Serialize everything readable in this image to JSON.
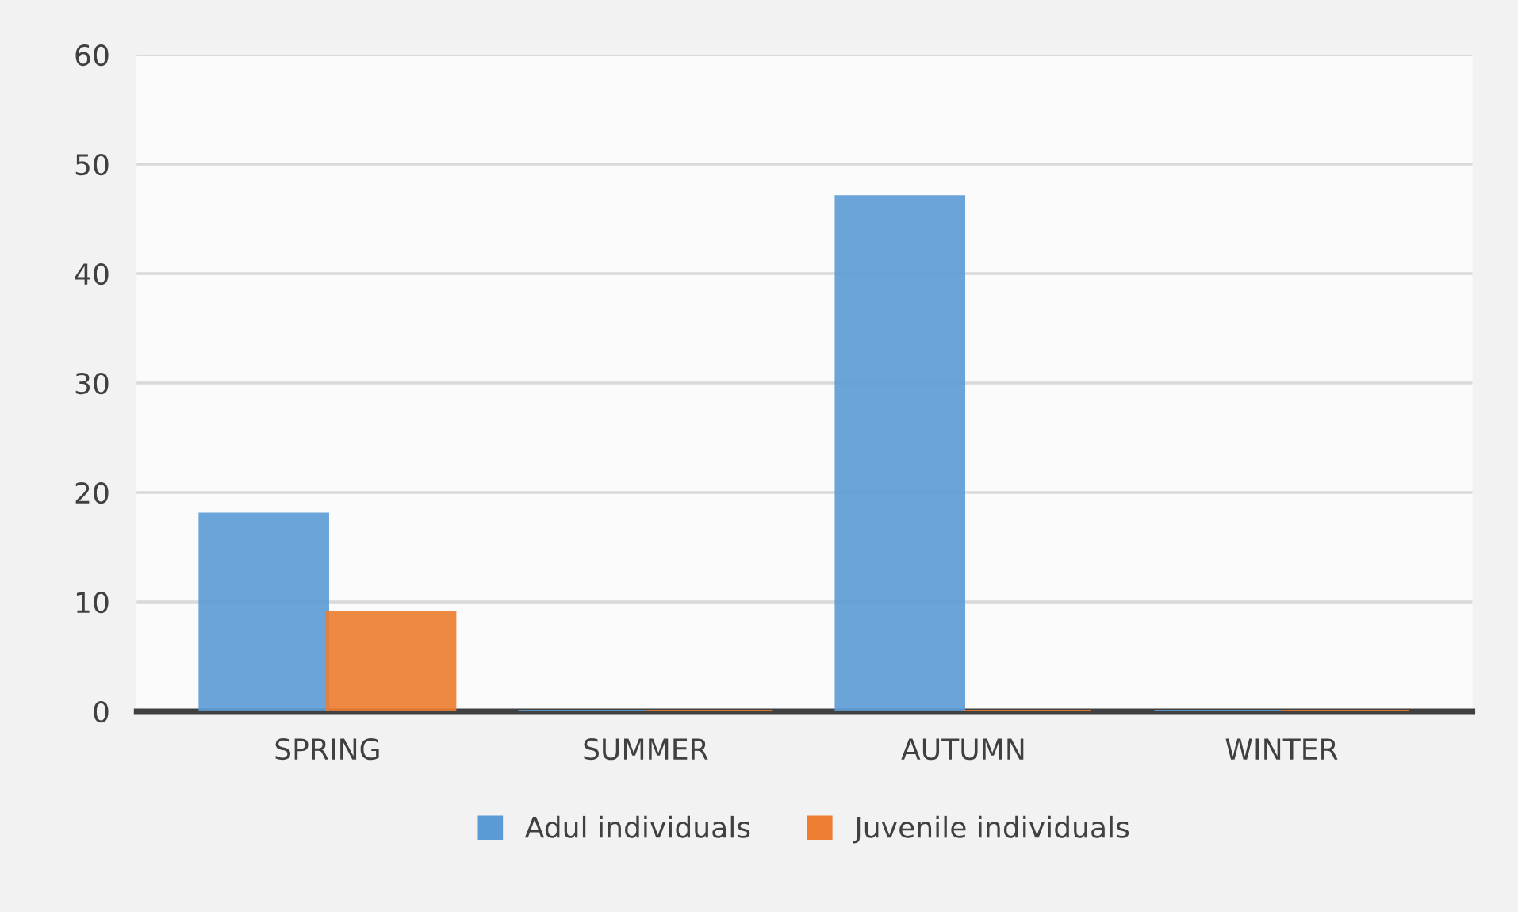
{
  "chart_data": {
    "type": "bar",
    "categories": [
      "SPRING",
      "SUMMER",
      "AUTUMN",
      "WINTER"
    ],
    "series": [
      {
        "name": "Adul individuals",
        "color": "#5b9bd5",
        "values": [
          18,
          0,
          47,
          0
        ]
      },
      {
        "name": "Juvenile individuals",
        "color": "#ed7d31",
        "values": [
          9,
          0,
          0,
          0
        ]
      }
    ],
    "ylim": [
      0,
      60
    ],
    "yticks": [
      0,
      10,
      20,
      30,
      40,
      50,
      60
    ],
    "grid": "y",
    "legend": "bottom"
  }
}
